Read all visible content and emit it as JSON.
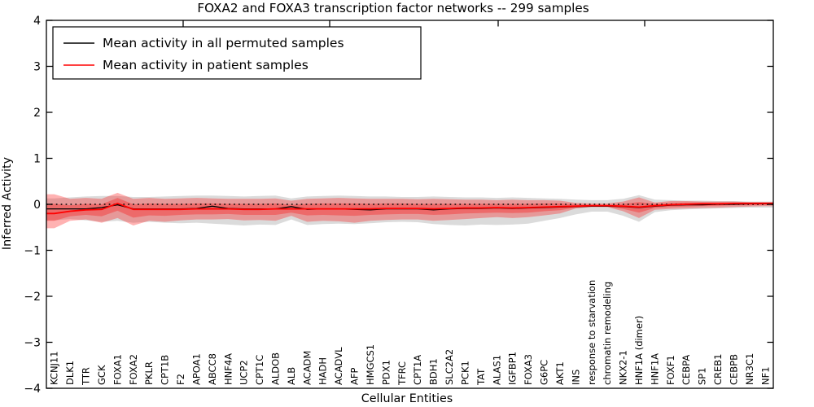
{
  "figure": {
    "title": "FOXA2 and FOXA3 transcription factor networks -- 299 samples",
    "xlabel": "Cellular Entities",
    "ylabel": "Inferred Activity"
  },
  "legend": {
    "entries": [
      {
        "label": "Mean activity in all permuted samples",
        "color": "#000000"
      },
      {
        "label": "Mean activity in patient samples",
        "color": "#ff0000"
      }
    ]
  },
  "axes": {
    "ylim": [
      -4,
      4
    ],
    "y_tick_values": [
      4,
      3,
      2,
      1,
      0,
      -1,
      -2,
      -3,
      -4
    ],
    "y_tick_labels": [
      "4",
      "3",
      "2",
      "1",
      "0",
      "−1",
      "−2",
      "−3",
      "−4"
    ],
    "zero_line_y": 0
  },
  "chart_data": {
    "type": "line",
    "title": "FOXA2 and FOXA3 transcription factor networks -- 299 samples",
    "xlabel": "Cellular Entities",
    "ylabel": "Inferred Activity",
    "ylim": [
      -4,
      4
    ],
    "grid": false,
    "legend_position": "upper left",
    "categories": [
      "KCNJ11",
      "DLK1",
      "TTR",
      "GCK",
      "FOXA1",
      "FOXA2",
      "PKLR",
      "CPT1B",
      "F2",
      "APOA1",
      "ABCC8",
      "HNF4A",
      "UCP2",
      "CPT1C",
      "ALDOB",
      "ALB",
      "ACADM",
      "HADH",
      "ACADVL",
      "AFP",
      "HMGCS1",
      "PDX1",
      "TFRC",
      "CPT1A",
      "BDH1",
      "SLC2A2",
      "PCK1",
      "TAT",
      "ALAS1",
      "IGFBP1",
      "FOXA3",
      "G6PC",
      "AKT1",
      "INS",
      "response to starvation",
      "chromatin remodeling",
      "NKX2-1",
      "HNF1A (dimer)",
      "HNF1A",
      "FOXF1",
      "CEBPA",
      "SP1",
      "CREB1",
      "CEBPB",
      "NR3C1",
      "NF1"
    ],
    "series": [
      {
        "name": "Mean activity in all permuted samples",
        "color": "#000000",
        "width": 1.3,
        "values": [
          -0.1,
          -0.1,
          -0.1,
          -0.07,
          -0.01,
          -0.1,
          -0.1,
          -0.1,
          -0.1,
          -0.09,
          -0.04,
          -0.09,
          -0.1,
          -0.1,
          -0.1,
          -0.05,
          -0.11,
          -0.1,
          -0.1,
          -0.11,
          -0.12,
          -0.1,
          -0.1,
          -0.1,
          -0.12,
          -0.1,
          -0.09,
          -0.09,
          -0.08,
          -0.09,
          -0.08,
          -0.07,
          -0.06,
          -0.05,
          -0.04,
          -0.04,
          -0.05,
          -0.07,
          -0.04,
          -0.02,
          -0.01,
          -0.01,
          0.0,
          0.0,
          0.01,
          0.01
        ]
      },
      {
        "name": "Mean activity in patient samples",
        "color": "#ff0000",
        "width": 1.8,
        "values": [
          -0.2,
          -0.15,
          -0.12,
          -0.11,
          0.02,
          -0.11,
          -0.11,
          -0.11,
          -0.11,
          -0.1,
          -0.1,
          -0.1,
          -0.11,
          -0.11,
          -0.1,
          -0.1,
          -0.1,
          -0.1,
          -0.1,
          -0.1,
          -0.1,
          -0.09,
          -0.09,
          -0.09,
          -0.1,
          -0.09,
          -0.08,
          -0.08,
          -0.07,
          -0.08,
          -0.07,
          -0.06,
          -0.05,
          -0.04,
          -0.03,
          -0.03,
          -0.04,
          -0.06,
          -0.03,
          -0.01,
          0.0,
          0.01,
          0.01,
          0.02,
          0.02,
          0.02
        ]
      }
    ],
    "bands": [
      {
        "name": "permuted-range",
        "color": "#000000",
        "opacity": 0.14,
        "upper": [
          0.13,
          0.15,
          0.17,
          0.18,
          0.18,
          0.16,
          0.16,
          0.17,
          0.18,
          0.19,
          0.19,
          0.18,
          0.17,
          0.18,
          0.19,
          0.13,
          0.17,
          0.18,
          0.19,
          0.18,
          0.17,
          0.17,
          0.16,
          0.16,
          0.17,
          0.16,
          0.15,
          0.15,
          0.14,
          0.15,
          0.14,
          0.13,
          0.12,
          0.1,
          0.09,
          0.09,
          0.12,
          0.2,
          0.1,
          0.09,
          0.08,
          0.08,
          0.07,
          0.07,
          0.06,
          0.06
        ],
        "lower": [
          -0.35,
          -0.32,
          -0.35,
          -0.38,
          -0.36,
          -0.4,
          -0.38,
          -0.4,
          -0.41,
          -0.4,
          -0.42,
          -0.44,
          -0.46,
          -0.44,
          -0.45,
          -0.33,
          -0.45,
          -0.43,
          -0.42,
          -0.43,
          -0.41,
          -0.39,
          -0.38,
          -0.39,
          -0.43,
          -0.45,
          -0.46,
          -0.44,
          -0.45,
          -0.44,
          -0.42,
          -0.36,
          -0.3,
          -0.22,
          -0.16,
          -0.16,
          -0.25,
          -0.38,
          -0.17,
          -0.13,
          -0.11,
          -0.1,
          -0.09,
          -0.08,
          -0.07,
          -0.07
        ]
      },
      {
        "name": "patient-outer",
        "color": "#ff0000",
        "opacity": 0.3,
        "upper": [
          0.22,
          0.12,
          0.14,
          0.12,
          0.25,
          0.12,
          0.14,
          0.12,
          0.13,
          0.14,
          0.13,
          0.12,
          0.12,
          0.12,
          0.13,
          0.08,
          0.12,
          0.13,
          0.14,
          0.13,
          0.12,
          0.12,
          0.12,
          0.11,
          0.12,
          0.11,
          0.1,
          0.1,
          0.09,
          0.1,
          0.09,
          0.09,
          0.08,
          0.03,
          0.02,
          0.02,
          0.06,
          0.15,
          0.04,
          0.07,
          0.07,
          0.06,
          0.06,
          0.06,
          0.05,
          0.05
        ],
        "lower": [
          -0.52,
          -0.36,
          -0.33,
          -0.4,
          -0.3,
          -0.46,
          -0.36,
          -0.38,
          -0.35,
          -0.33,
          -0.33,
          -0.32,
          -0.35,
          -0.34,
          -0.36,
          -0.25,
          -0.38,
          -0.36,
          -0.37,
          -0.4,
          -0.36,
          -0.34,
          -0.33,
          -0.33,
          -0.36,
          -0.34,
          -0.32,
          -0.3,
          -0.28,
          -0.3,
          -0.28,
          -0.24,
          -0.2,
          -0.09,
          -0.06,
          -0.06,
          -0.15,
          -0.3,
          -0.12,
          -0.1,
          -0.09,
          -0.08,
          -0.07,
          -0.06,
          -0.05,
          -0.04
        ]
      },
      {
        "name": "patient-inner",
        "color": "#ff0000",
        "opacity": 0.3,
        "upper": [
          0.01,
          -0.02,
          0.01,
          0.0,
          0.14,
          0.0,
          0.02,
          0.01,
          0.01,
          0.02,
          0.02,
          0.01,
          0.01,
          0.01,
          0.02,
          -0.01,
          0.01,
          0.02,
          0.02,
          0.02,
          0.01,
          0.02,
          0.02,
          0.01,
          0.01,
          0.01,
          0.01,
          0.01,
          0.01,
          0.01,
          0.01,
          0.02,
          0.02,
          0.0,
          -0.01,
          -0.01,
          0.01,
          0.05,
          0.01,
          0.03,
          0.04,
          0.04,
          0.04,
          0.04,
          0.04,
          0.04
        ],
        "lower": [
          -0.36,
          -0.26,
          -0.23,
          -0.26,
          -0.14,
          -0.29,
          -0.24,
          -0.25,
          -0.23,
          -0.22,
          -0.22,
          -0.21,
          -0.23,
          -0.23,
          -0.23,
          -0.18,
          -0.24,
          -0.23,
          -0.24,
          -0.25,
          -0.23,
          -0.22,
          -0.21,
          -0.21,
          -0.23,
          -0.22,
          -0.2,
          -0.19,
          -0.18,
          -0.19,
          -0.18,
          -0.15,
          -0.13,
          -0.07,
          -0.05,
          -0.05,
          -0.1,
          -0.18,
          -0.08,
          -0.06,
          -0.05,
          -0.04,
          -0.03,
          -0.02,
          -0.02,
          -0.01
        ]
      }
    ]
  }
}
